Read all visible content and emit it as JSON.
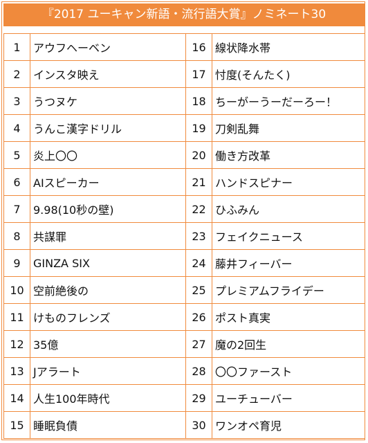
{
  "header": {
    "title": "『2017 ユーキャン新語・流行語大賞』ノミネート30"
  },
  "table": {
    "rows": [
      [
        "1",
        "アウフヘーベン",
        "16",
        "線状降水帯"
      ],
      [
        "2",
        "インスタ映え",
        "17",
        "忖度(そんたく)"
      ],
      [
        "3",
        "うつヌケ",
        "18",
        "ちーがーうーだーろー！"
      ],
      [
        "4",
        "うんこ漢字ドリル",
        "19",
        "刀剣乱舞"
      ],
      [
        "5",
        "炎上〇〇",
        "20",
        "働き方改革"
      ],
      [
        "6",
        "AIスピーカー",
        "21",
        "ハンドスピナー"
      ],
      [
        "7",
        "9.98(10秒の壁)",
        "22",
        "ひふみん"
      ],
      [
        "8",
        "共謀罪",
        "23",
        "フェイクニュース"
      ],
      [
        "9",
        "GINZA SIX",
        "24",
        "藤井フィーバー"
      ],
      [
        "10",
        "空前絶後の",
        "25",
        "プレミアムフライデー"
      ],
      [
        "11",
        "けものフレンズ",
        "26",
        "ポスト真実"
      ],
      [
        "12",
        "35億",
        "27",
        "魔の2回生"
      ],
      [
        "13",
        "Jアラート",
        "28",
        "〇〇ファースト"
      ],
      [
        "14",
        "人生100年時代",
        "29",
        "ユーチューバー"
      ],
      [
        "15",
        "睡眠負債",
        "30",
        "ワンオペ育児"
      ]
    ]
  }
}
